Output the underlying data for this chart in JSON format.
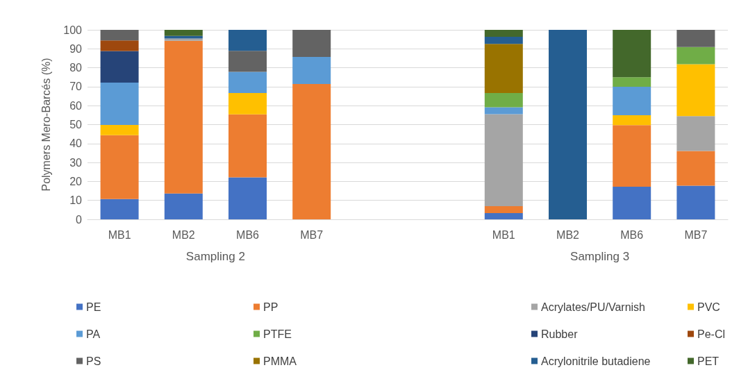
{
  "chart_data": {
    "type": "bar",
    "stacked": true,
    "ylabel": "Polymers Mero-Barcés (%)",
    "categories": [
      "MB1",
      "MB2",
      "MB6",
      "MB7",
      null,
      null,
      "MB1",
      "MB2",
      "MB6",
      "MB7"
    ],
    "annotations": [
      "Sampling 2",
      "Sampling 3"
    ],
    "ylim": [
      0,
      100
    ],
    "yticks": [
      0,
      10,
      20,
      30,
      40,
      50,
      60,
      70,
      80,
      90,
      100
    ],
    "grid": "y",
    "legend": "bottom",
    "series": [
      {
        "name": "PE",
        "color": "#4472c4",
        "values": [
          10.7,
          13.6,
          22.2,
          0,
          null,
          null,
          3.3,
          0,
          17.2,
          17.8
        ]
      },
      {
        "name": "PP",
        "color": "#ed7d31",
        "values": [
          33.7,
          80.6,
          33.2,
          71.4,
          null,
          null,
          3.7,
          0,
          32.5,
          18.3
        ]
      },
      {
        "name": "Acrylates/PU/Varnish",
        "color": "#a5a5a5",
        "values": [
          0,
          1.2,
          0,
          0,
          null,
          null,
          48.5,
          0,
          0,
          18.4
        ]
      },
      {
        "name": "PVC",
        "color": "#ffc000",
        "values": [
          5.4,
          0,
          11.3,
          0,
          null,
          null,
          0,
          0,
          5.2,
          27.4
        ]
      },
      {
        "name": "PA",
        "color": "#5b9bd5",
        "values": [
          22.4,
          0,
          11.1,
          14.3,
          null,
          null,
          3.7,
          0,
          15.1,
          0
        ]
      },
      {
        "name": "PTFE",
        "color": "#70ad47",
        "values": [
          0,
          0,
          0,
          0,
          null,
          null,
          7.5,
          0,
          5,
          9
        ]
      },
      {
        "name": "Rubber",
        "color": "#264478",
        "values": [
          16.6,
          0,
          0,
          0,
          null,
          null,
          0,
          0,
          0,
          0
        ]
      },
      {
        "name": "Pe-Cl",
        "color": "#9e480e",
        "values": [
          5.6,
          0,
          0,
          0,
          null,
          null,
          0,
          0,
          0,
          0
        ]
      },
      {
        "name": "PS",
        "color": "#636363",
        "values": [
          5.6,
          0,
          11.1,
          14.3,
          null,
          null,
          0,
          0,
          0,
          9.1
        ]
      },
      {
        "name": "PMMA",
        "color": "#997300",
        "values": [
          0,
          0,
          0,
          0,
          null,
          null,
          25.9,
          0,
          0,
          0
        ]
      },
      {
        "name": "Acrylonitrile butadiene",
        "color": "#255e91",
        "values": [
          0,
          1.4,
          11.1,
          0,
          null,
          null,
          3.7,
          100,
          0,
          0
        ]
      },
      {
        "name": "PET",
        "color": "#43682b",
        "values": [
          0,
          3.2,
          0,
          0,
          null,
          null,
          3.7,
          0,
          25,
          0
        ]
      }
    ]
  }
}
